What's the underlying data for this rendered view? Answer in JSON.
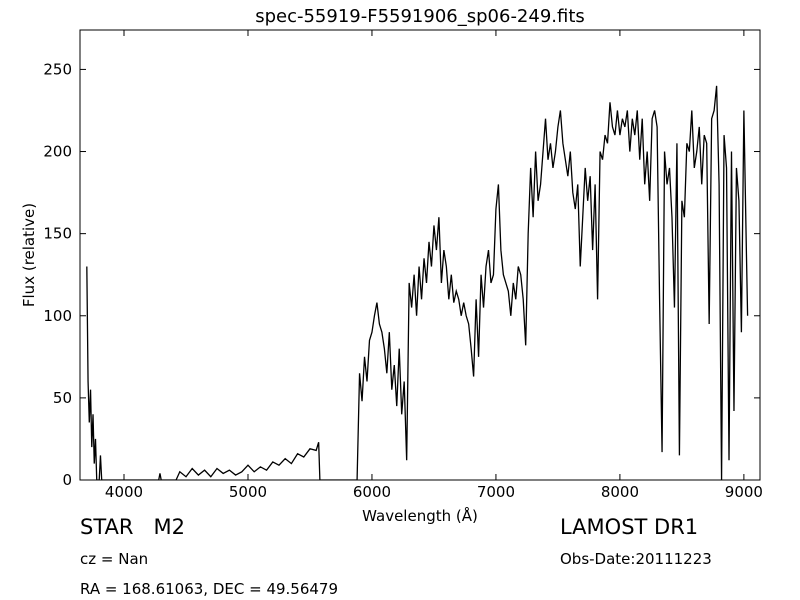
{
  "chart_data": {
    "type": "line",
    "title": "spec-55919-F5591906_sp06-249.fits",
    "x_label": "Wavelength (Å)",
    "y_label": "Flux (relative)",
    "annotations": {
      "object": "STAR   M2",
      "redshift": "cz = Nan",
      "coords": "RA = 168.61063, DEC = 49.56479",
      "survey": "LAMOST DR1",
      "obs_date": "Obs-Date:20111223"
    },
    "color": "#000000",
    "xlim": [
      3645,
      9130
    ],
    "ylim": [
      0,
      274
    ],
    "xticks": [
      4000,
      5000,
      6000,
      7000,
      8000,
      9000
    ],
    "yticks": [
      0,
      50,
      100,
      150,
      200,
      250
    ],
    "x": [
      3700,
      3710,
      3720,
      3730,
      3740,
      3750,
      3760,
      3770,
      3780,
      3800,
      3810,
      3820,
      4280,
      4290,
      4300,
      4420,
      4450,
      4500,
      4550,
      4600,
      4650,
      4700,
      4750,
      4800,
      4850,
      4900,
      4950,
      5000,
      5050,
      5100,
      5150,
      5200,
      5250,
      5300,
      5350,
      5400,
      5450,
      5500,
      5550,
      5570,
      5580,
      5880,
      5900,
      5920,
      5940,
      5960,
      5980,
      6000,
      6020,
      6040,
      6060,
      6080,
      6100,
      6120,
      6140,
      6160,
      6180,
      6200,
      6220,
      6240,
      6260,
      6280,
      6300,
      6320,
      6340,
      6360,
      6380,
      6400,
      6420,
      6440,
      6460,
      6480,
      6500,
      6520,
      6540,
      6560,
      6580,
      6600,
      6620,
      6640,
      6660,
      6680,
      6700,
      6720,
      6740,
      6760,
      6780,
      6800,
      6820,
      6840,
      6860,
      6880,
      6900,
      6920,
      6940,
      6960,
      6980,
      7000,
      7020,
      7040,
      7060,
      7080,
      7100,
      7120,
      7140,
      7160,
      7180,
      7200,
      7220,
      7240,
      7260,
      7280,
      7300,
      7320,
      7340,
      7360,
      7380,
      7400,
      7420,
      7440,
      7460,
      7480,
      7500,
      7520,
      7540,
      7560,
      7580,
      7600,
      7620,
      7640,
      7660,
      7680,
      7700,
      7720,
      7740,
      7760,
      7780,
      7800,
      7820,
      7840,
      7860,
      7880,
      7900,
      7920,
      7940,
      7960,
      7980,
      8000,
      8020,
      8040,
      8060,
      8080,
      8100,
      8120,
      8140,
      8160,
      8180,
      8200,
      8220,
      8240,
      8260,
      8280,
      8300,
      8320,
      8340,
      8360,
      8380,
      8400,
      8420,
      8440,
      8460,
      8480,
      8500,
      8520,
      8540,
      8560,
      8580,
      8600,
      8620,
      8640,
      8660,
      8680,
      8700,
      8720,
      8740,
      8760,
      8780,
      8800,
      8820,
      8840,
      8860,
      8880,
      8900,
      8920,
      8940,
      8960,
      8980,
      9000,
      9020,
      9030
    ],
    "values": [
      130,
      60,
      35,
      55,
      20,
      40,
      10,
      25,
      0,
      0,
      15,
      0,
      0,
      4,
      0,
      0,
      5,
      2,
      7,
      3,
      6,
      2,
      7,
      4,
      6,
      3,
      5,
      9,
      5,
      8,
      6,
      11,
      9,
      13,
      10,
      16,
      14,
      19,
      18,
      23,
      0,
      0,
      65,
      48,
      75,
      60,
      85,
      90,
      100,
      108,
      95,
      90,
      80,
      65,
      90,
      55,
      70,
      45,
      80,
      40,
      60,
      12,
      120,
      105,
      125,
      100,
      130,
      110,
      135,
      120,
      145,
      130,
      155,
      140,
      160,
      120,
      140,
      130,
      110,
      125,
      108,
      115,
      110,
      100,
      108,
      100,
      95,
      80,
      63,
      110,
      75,
      125,
      105,
      130,
      140,
      120,
      125,
      165,
      180,
      140,
      125,
      120,
      115,
      100,
      120,
      110,
      130,
      125,
      110,
      82,
      150,
      190,
      160,
      200,
      170,
      180,
      200,
      220,
      195,
      205,
      190,
      200,
      215,
      225,
      205,
      195,
      185,
      200,
      175,
      165,
      180,
      130,
      160,
      190,
      170,
      185,
      140,
      180,
      110,
      200,
      195,
      210,
      205,
      230,
      215,
      210,
      225,
      210,
      220,
      215,
      225,
      200,
      220,
      210,
      225,
      195,
      220,
      180,
      200,
      170,
      220,
      225,
      215,
      110,
      17,
      200,
      180,
      190,
      160,
      105,
      205,
      15,
      170,
      160,
      205,
      200,
      225,
      190,
      200,
      215,
      180,
      210,
      205,
      95,
      220,
      225,
      240,
      180,
      0,
      210,
      190,
      12,
      200,
      42,
      190,
      170,
      90,
      225,
      140,
      100
    ]
  }
}
